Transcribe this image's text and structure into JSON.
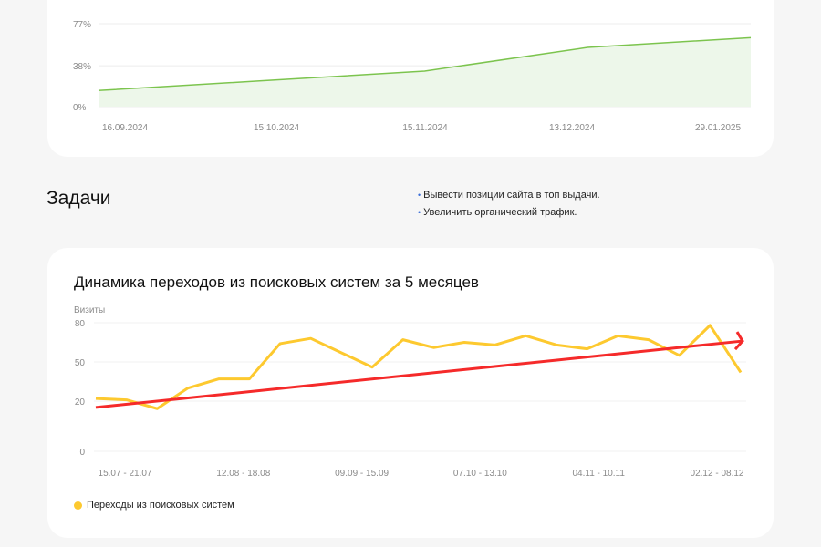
{
  "colors": {
    "green_line": "#7cc44e",
    "green_fill": "#edf7ea",
    "yellow_line": "#fdc92f",
    "trend_red": "#f52a2a",
    "bullet_blue": "#3b6fd9"
  },
  "tasks": {
    "title": "Задачи",
    "items": [
      "Вывести позиции сайта в топ выдачи.",
      "Увеличить органический трафик."
    ]
  },
  "chart_data": [
    {
      "type": "area",
      "title": "",
      "y_unit": "%",
      "y_ticks": [
        "0%",
        "38%",
        "77%"
      ],
      "y_tick_values": [
        0,
        38,
        77
      ],
      "ylim": [
        0,
        77
      ],
      "x_ticks": [
        "16.09.2024",
        "15.10.2024",
        "15.11.2024",
        "13.12.2024",
        "29.01.2025"
      ],
      "points": [
        {
          "x": "16.09.2024",
          "y": 15
        },
        {
          "x": "15.10.2024",
          "y": 24
        },
        {
          "x": "15.11.2024",
          "y": 33
        },
        {
          "x": "13.12.2024",
          "y": 55
        },
        {
          "x": "29.01.2025",
          "y": 64
        }
      ],
      "grid": true
    },
    {
      "type": "line",
      "title": "Динамика переходов из поисковых систем за 5 месяцев",
      "ylabel": "Визиты",
      "y_ticks": [
        "0",
        "20",
        "50",
        "80"
      ],
      "y_tick_values": [
        0,
        20,
        50,
        80
      ],
      "ylim": [
        0,
        80
      ],
      "x_ticks": [
        "15.07 - 21.07",
        "12.08 - 18.08",
        "09.09 - 15.09",
        "07.10 - 13.10",
        "04.11 - 10.11",
        "02.12 - 08.12"
      ],
      "series": [
        {
          "name": "Переходы из поисковых систем",
          "color": "#fdc92f",
          "values": [
            22,
            21,
            17,
            30,
            37,
            37,
            64,
            68,
            57,
            46,
            67,
            61,
            65,
            63,
            70,
            63,
            60,
            70,
            67,
            55,
            78,
            42
          ]
        }
      ],
      "trend_line": {
        "start": 17.5,
        "end": 66,
        "color": "#f52a2a",
        "arrow": true
      },
      "legend": "bottom-left",
      "grid": true
    }
  ]
}
